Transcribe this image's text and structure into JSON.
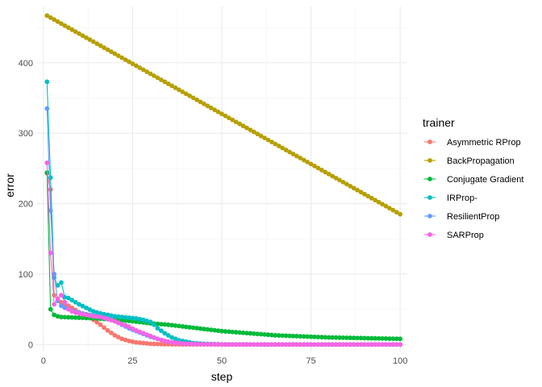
{
  "chart_data": {
    "type": "line",
    "xlabel": "step",
    "ylabel": "error",
    "xlim": [
      -2,
      102
    ],
    "ylim": [
      -10,
      480
    ],
    "x_ticks": [
      0,
      25,
      50,
      75,
      100
    ],
    "y_ticks": [
      0,
      100,
      200,
      300,
      400
    ],
    "grid": true,
    "legend_title": "trainer",
    "legend_position": "right",
    "series": [
      {
        "name": "Asymmetric RProp",
        "color": "#F8766D",
        "points": [
          [
            1,
            243
          ],
          [
            2,
            220
          ],
          [
            3,
            70
          ],
          [
            4,
            62
          ],
          [
            5,
            60
          ],
          [
            6,
            57
          ],
          [
            7,
            55
          ],
          [
            8,
            52
          ],
          [
            9,
            49
          ],
          [
            10,
            46
          ],
          [
            12,
            41
          ],
          [
            14,
            35
          ],
          [
            16,
            28
          ],
          [
            18,
            20
          ],
          [
            20,
            13
          ],
          [
            22,
            8
          ],
          [
            24,
            5
          ],
          [
            26,
            3
          ],
          [
            28,
            2
          ],
          [
            30,
            1
          ],
          [
            33,
            0.5
          ],
          [
            36,
            0.2
          ],
          [
            40,
            0.1
          ],
          [
            50,
            0
          ],
          [
            60,
            0
          ],
          [
            70,
            0
          ],
          [
            80,
            0
          ],
          [
            90,
            0
          ],
          [
            100,
            0
          ]
        ]
      },
      {
        "name": "BackPropagation",
        "color": "#B79F00",
        "points": [
          [
            1,
            467
          ],
          [
            100,
            185
          ]
        ]
      },
      {
        "name": "Conjugate Gradient",
        "color": "#00BA38",
        "points": [
          [
            1,
            244
          ],
          [
            2,
            50
          ],
          [
            3,
            42
          ],
          [
            4,
            40
          ],
          [
            5,
            39
          ],
          [
            10,
            38
          ],
          [
            15,
            37
          ],
          [
            20,
            35
          ],
          [
            25,
            33
          ],
          [
            30,
            30
          ],
          [
            35,
            28
          ],
          [
            40,
            25
          ],
          [
            45,
            22
          ],
          [
            50,
            19
          ],
          [
            55,
            17
          ],
          [
            60,
            15
          ],
          [
            65,
            13
          ],
          [
            70,
            12
          ],
          [
            75,
            11
          ],
          [
            80,
            10
          ],
          [
            85,
            9.5
          ],
          [
            90,
            9
          ],
          [
            95,
            8.5
          ],
          [
            100,
            8
          ]
        ]
      },
      {
        "name": "IRProp-",
        "color": "#00BFC4",
        "points": [
          [
            1,
            373
          ],
          [
            2,
            237
          ],
          [
            3,
            95
          ],
          [
            4,
            84
          ],
          [
            5,
            88
          ],
          [
            6,
            67
          ],
          [
            7,
            66
          ],
          [
            8,
            63
          ],
          [
            9,
            60
          ],
          [
            10,
            57
          ],
          [
            12,
            52
          ],
          [
            14,
            47
          ],
          [
            16,
            44
          ],
          [
            18,
            42
          ],
          [
            20,
            40
          ],
          [
            22,
            39
          ],
          [
            24,
            38
          ],
          [
            26,
            37
          ],
          [
            28,
            35
          ],
          [
            30,
            32
          ],
          [
            31,
            28
          ],
          [
            32,
            23
          ],
          [
            34,
            16
          ],
          [
            36,
            10
          ],
          [
            38,
            6
          ],
          [
            40,
            4
          ],
          [
            42,
            2
          ],
          [
            45,
            1
          ],
          [
            50,
            0.2
          ],
          [
            60,
            0
          ],
          [
            70,
            0
          ],
          [
            80,
            0
          ],
          [
            90,
            0
          ],
          [
            100,
            0
          ]
        ]
      },
      {
        "name": "ResilientProp",
        "color": "#619CFF",
        "points": [
          [
            1,
            335
          ],
          [
            2,
            190
          ],
          [
            3,
            100
          ],
          [
            4,
            62
          ],
          [
            5,
            55
          ],
          [
            6,
            52
          ],
          [
            7,
            50
          ],
          [
            8,
            48
          ],
          [
            10,
            45
          ],
          [
            12,
            43
          ],
          [
            14,
            41
          ],
          [
            16,
            39
          ],
          [
            18,
            37
          ],
          [
            20,
            33
          ],
          [
            22,
            28
          ],
          [
            24,
            23
          ],
          [
            26,
            19
          ],
          [
            28,
            15
          ],
          [
            30,
            11
          ],
          [
            32,
            8
          ],
          [
            34,
            5
          ],
          [
            36,
            3
          ],
          [
            38,
            2
          ],
          [
            40,
            1
          ],
          [
            45,
            0.4
          ],
          [
            50,
            0
          ],
          [
            60,
            0
          ],
          [
            70,
            0
          ],
          [
            80,
            0
          ],
          [
            90,
            0
          ],
          [
            100,
            0
          ]
        ]
      },
      {
        "name": "SARProp",
        "color": "#F564E3",
        "points": [
          [
            1,
            258
          ],
          [
            2,
            130
          ],
          [
            3,
            57
          ],
          [
            4,
            65
          ],
          [
            5,
            70
          ],
          [
            6,
            60
          ],
          [
            7,
            50
          ],
          [
            8,
            47
          ],
          [
            10,
            44
          ],
          [
            12,
            42
          ],
          [
            14,
            40
          ],
          [
            16,
            39
          ],
          [
            18,
            36
          ],
          [
            20,
            33
          ],
          [
            22,
            29
          ],
          [
            24,
            25
          ],
          [
            26,
            20
          ],
          [
            28,
            16
          ],
          [
            30,
            12
          ],
          [
            32,
            8
          ],
          [
            34,
            5
          ],
          [
            36,
            3
          ],
          [
            38,
            2
          ],
          [
            40,
            1
          ],
          [
            45,
            0.3
          ],
          [
            50,
            0
          ],
          [
            60,
            0
          ],
          [
            70,
            0
          ],
          [
            80,
            0
          ],
          [
            90,
            0
          ],
          [
            100,
            0
          ]
        ]
      }
    ]
  }
}
